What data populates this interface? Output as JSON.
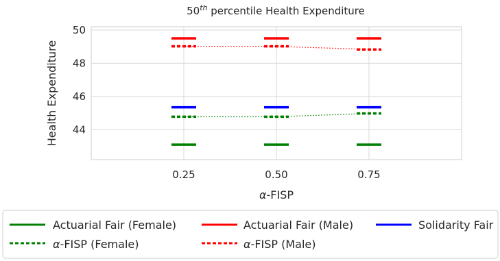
{
  "chart_data": {
    "type": "line",
    "title_base": "50",
    "title_sup": "th",
    "title_rest": " percentile Health Expenditure",
    "xlabel_greek": "α",
    "xlabel_rest": "-FISP",
    "ylabel": "Health Expenditure",
    "x": [
      0.25,
      0.5,
      0.75
    ],
    "x_tick_labels": [
      "0.25",
      "0.50",
      "0.75"
    ],
    "xlim": [
      0.0,
      1.0
    ],
    "ylim": [
      42.2,
      50.2
    ],
    "y_ticks": [
      44,
      46,
      48,
      50
    ],
    "y_tick_labels": [
      "44",
      "46",
      "48",
      "50"
    ],
    "grid": true,
    "legend_position": "bottom",
    "series": [
      {
        "key": "af_female",
        "name": "Actuarial Fair (Female)",
        "color": "#008000",
        "style": "solid",
        "connect": false,
        "values": [
          43.1,
          43.1,
          43.1
        ]
      },
      {
        "key": "af_male",
        "name": "Actuarial Fair (Male)",
        "color": "#ff0000",
        "style": "solid",
        "connect": false,
        "values": [
          49.5,
          49.5,
          49.5
        ]
      },
      {
        "key": "sf",
        "name": "Solidarity Fair",
        "color": "#0000ff",
        "style": "solid",
        "connect": false,
        "values": [
          45.35,
          45.35,
          45.35
        ]
      },
      {
        "key": "fisp_female",
        "name_greek": "α",
        "name": "-FISP (Female)",
        "color": "#008000",
        "style": "dashed",
        "connect": true,
        "values": [
          44.78,
          44.78,
          44.98
        ]
      },
      {
        "key": "fisp_male",
        "name_greek": "α",
        "name": "-FISP (Male)",
        "color": "#ff0000",
        "style": "dashed",
        "connect": true,
        "values": [
          49.02,
          49.02,
          48.83
        ]
      }
    ]
  }
}
